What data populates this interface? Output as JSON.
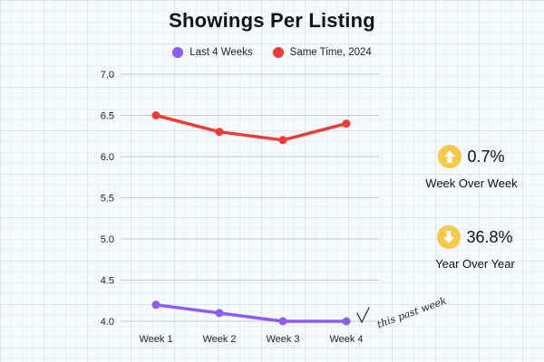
{
  "chart_data": {
    "type": "line",
    "title": "Showings Per Listing",
    "categories": [
      "Week 1",
      "Week 2",
      "Week 3",
      "Week 4"
    ],
    "ylim": [
      4.0,
      7.0
    ],
    "yticks": [
      "4.0",
      "4.5",
      "5.0",
      "5.5",
      "6.0",
      "6.5",
      "7.0"
    ],
    "grid": true,
    "legend_position": "top-center",
    "series": [
      {
        "name": "Last 4 Weeks",
        "color": "#8b5cf6",
        "values": [
          4.2,
          4.1,
          4.0,
          4.0
        ]
      },
      {
        "name": "Same Time, 2024",
        "color": "#ef3b36",
        "values": [
          6.5,
          6.3,
          6.2,
          6.4
        ]
      }
    ],
    "annotation": "this past week"
  },
  "stats": [
    {
      "value": "0.7%",
      "label": "Week Over Week",
      "direction": "up",
      "icon": "arrow-up-icon"
    },
    {
      "value": "36.8%",
      "label": "Year Over Year",
      "direction": "down",
      "icon": "arrow-down-icon"
    }
  ],
  "colors": {
    "badge": "#f7c948",
    "grid": "#c9c9c9"
  }
}
